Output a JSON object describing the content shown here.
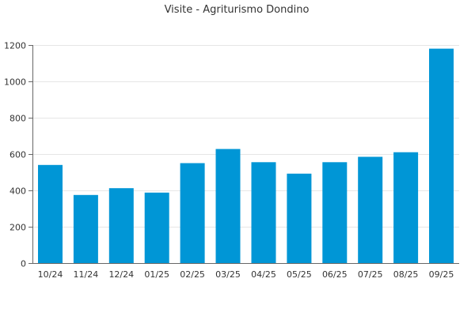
{
  "chart_data": {
    "type": "bar",
    "title": "Visite - Agriturismo Dondino",
    "xlabel": "",
    "ylabel": "",
    "categories": [
      "10/24",
      "11/24",
      "12/24",
      "01/25",
      "02/25",
      "03/25",
      "04/25",
      "05/25",
      "06/25",
      "07/25",
      "08/25",
      "09/25"
    ],
    "values": [
      540,
      375,
      412,
      388,
      550,
      628,
      555,
      492,
      555,
      585,
      610,
      1180
    ],
    "ylim": [
      0,
      1200
    ],
    "yticks": [
      0,
      200,
      400,
      600,
      800,
      1000,
      1200
    ],
    "grid": true,
    "legend": "none",
    "bar_color": "#0096d6"
  }
}
